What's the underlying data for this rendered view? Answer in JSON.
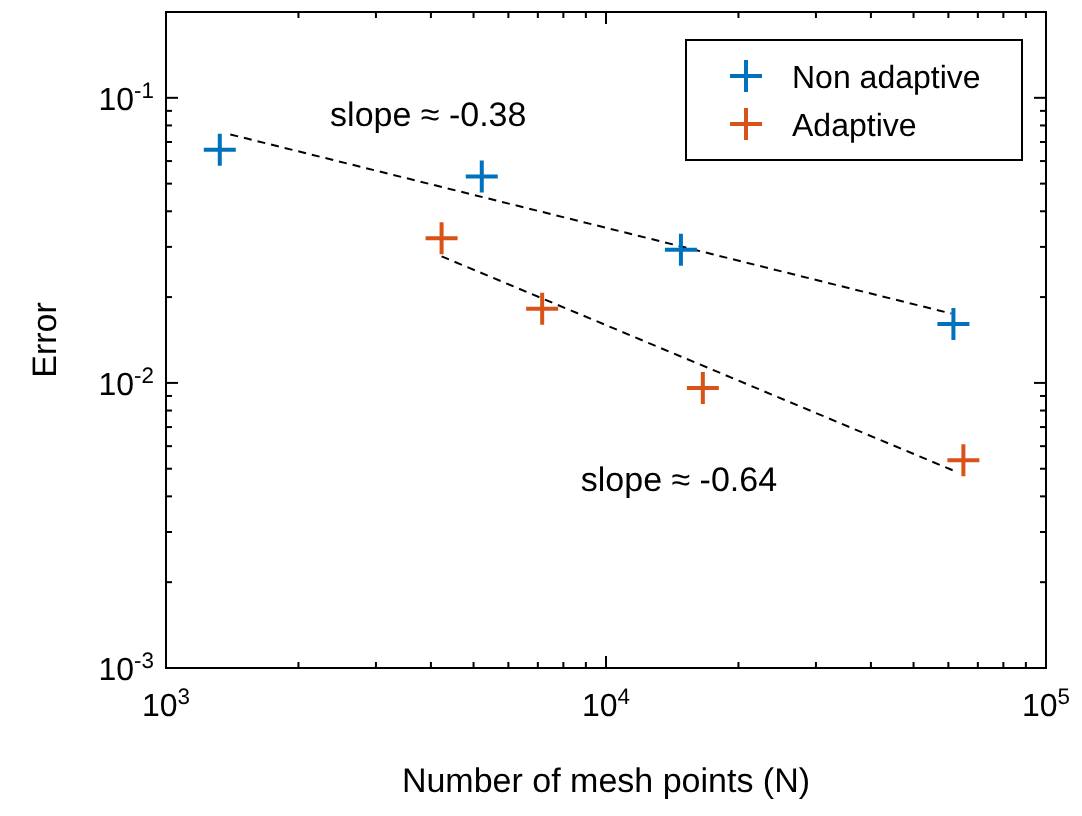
{
  "chart_data": {
    "type": "scatter",
    "xlabel": "Number of mesh points (N)",
    "ylabel": "Error",
    "log": "xy",
    "grid": false,
    "legend": "top right",
    "marker": "cross",
    "xlim": [
      1000,
      100000
    ],
    "ylim": [
      0.001,
      0.2
    ],
    "xticks": [
      {
        "value": 1000,
        "label": "10$^{3}$"
      },
      {
        "value": 2000,
        "label": null
      },
      {
        "value": 3000,
        "label": null
      },
      {
        "value": 4000,
        "label": null
      },
      {
        "value": 5000,
        "label": null
      },
      {
        "value": 6000,
        "label": null
      },
      {
        "value": 7000,
        "label": null
      },
      {
        "value": 8000,
        "label": null
      },
      {
        "value": 9000,
        "label": null
      },
      {
        "value": 10000,
        "label": "10$^{4}$"
      },
      {
        "value": 20000,
        "label": null
      },
      {
        "value": 30000,
        "label": null
      },
      {
        "value": 40000,
        "label": null
      },
      {
        "value": 50000,
        "label": null
      },
      {
        "value": 60000,
        "label": null
      },
      {
        "value": 70000,
        "label": null
      },
      {
        "value": 80000,
        "label": null
      },
      {
        "value": 90000,
        "label": null
      },
      {
        "value": 100000,
        "label": "10$^{5}$"
      }
    ],
    "yticks": [
      {
        "value": 0.001,
        "label": "10$^{-3}$"
      },
      {
        "value": 0.002,
        "label": null
      },
      {
        "value": 0.003,
        "label": null
      },
      {
        "value": 0.004,
        "label": null
      },
      {
        "value": 0.005,
        "label": null
      },
      {
        "value": 0.006,
        "label": null
      },
      {
        "value": 0.007,
        "label": null
      },
      {
        "value": 0.008,
        "label": null
      },
      {
        "value": 0.009,
        "label": null
      },
      {
        "value": 0.01,
        "label": "10$^{-2}$"
      },
      {
        "value": 0.02,
        "label": null
      },
      {
        "value": 0.03,
        "label": null
      },
      {
        "value": 0.04,
        "label": null
      },
      {
        "value": 0.05,
        "label": null
      },
      {
        "value": 0.06,
        "label": null
      },
      {
        "value": 0.07,
        "label": null
      },
      {
        "value": 0.08,
        "label": null
      },
      {
        "value": 0.09,
        "label": null
      },
      {
        "value": 0.1,
        "label": "10$^{-1}$"
      },
      {
        "value": 0.2,
        "label": null
      }
    ],
    "series": [
      {
        "type": "line",
        "color": "#000000",
        "line_style": "dashed",
        "marker": "none",
        "x": [
          1400,
          61000
        ],
        "values": [
          0.0744,
          0.0175
        ]
      },
      {
        "type": "line",
        "color": "#000000",
        "line_style": "dashed",
        "marker": "none",
        "x": [
          4230,
          62100
        ],
        "values": [
          0.0278,
          0.0049
        ]
      },
      {
        "name": "Non adaptive",
        "color": "#0072bd",
        "x": [
          1325,
          5220,
          14800,
          61600
        ],
        "values": [
          0.0658,
          0.053,
          0.0293,
          0.0161
        ]
      },
      {
        "name": "Adaptive",
        "color": "#d95319",
        "x": [
          4230,
          7160,
          16600,
          64900
        ],
        "values": [
          0.0322,
          0.0182,
          0.0096,
          0.00535
        ]
      }
    ],
    "annotations": [
      "slope ≈ -0.38",
      "slope ≈ -0.64"
    ]
  }
}
